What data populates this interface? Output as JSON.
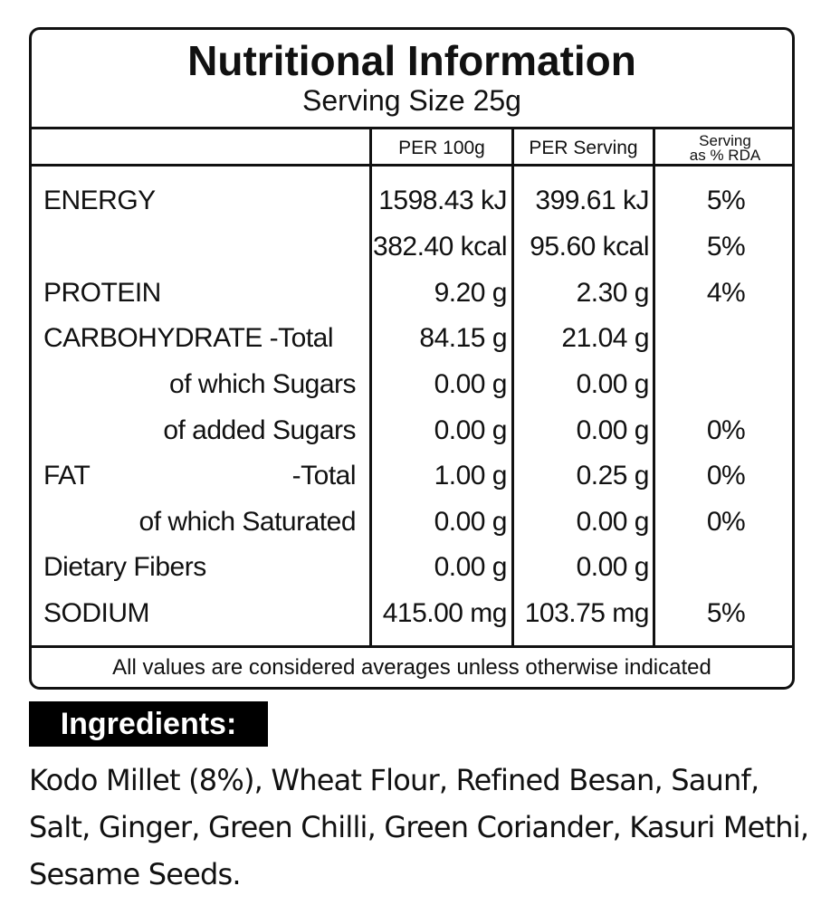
{
  "header": {
    "title": "Nutritional Information",
    "serving_size": "Serving Size 25g"
  },
  "columns": {
    "per_100g": "PER 100g",
    "per_serving": "PER Serving",
    "rda_line1": "Serving",
    "rda_line2": "as % RDA"
  },
  "rows": [
    {
      "label": "ENERGY",
      "per_100g": "1598.43 kJ",
      "per_serving": "399.61 kJ",
      "rda": "5%"
    },
    {
      "label": "",
      "per_100g": "382.40 kcal",
      "per_serving": "95.60 kcal",
      "rda": "5%"
    },
    {
      "label": "PROTEIN",
      "per_100g": "9.20 g",
      "per_serving": "2.30 g",
      "rda": "4%"
    },
    {
      "label": "CARBOHYDRATE -Total",
      "per_100g": "84.15 g",
      "per_serving": "21.04 g",
      "rda": ""
    },
    {
      "label": "of which Sugars",
      "per_100g": "0.00 g",
      "per_serving": "0.00 g",
      "rda": ""
    },
    {
      "label": "of added Sugars",
      "per_100g": "0.00 g",
      "per_serving": "0.00 g",
      "rda": "0%"
    },
    {
      "label": "FAT",
      "label_right": "-Total",
      "per_100g": "1.00 g",
      "per_serving": "0.25 g",
      "rda": "0%"
    },
    {
      "label": "of which Saturated",
      "per_100g": "0.00 g",
      "per_serving": "0.00 g",
      "rda": "0%"
    },
    {
      "label": "Dietary Fibers",
      "per_100g": "0.00 g",
      "per_serving": "0.00 g",
      "rda": ""
    },
    {
      "label": "SODIUM",
      "per_100g": "415.00 mg",
      "per_serving": "103.75 mg",
      "rda": "5%"
    }
  ],
  "footnote": "All values are considered averages unless otherwise indicated",
  "ingredients": {
    "heading": "Ingredients:",
    "text": "Kodo Millet (8%), Wheat Flour, Refined Besan, Saunf, Salt, Ginger, Green Chilli, Green Coriander, Kasuri Methi, Sesame Seeds."
  }
}
